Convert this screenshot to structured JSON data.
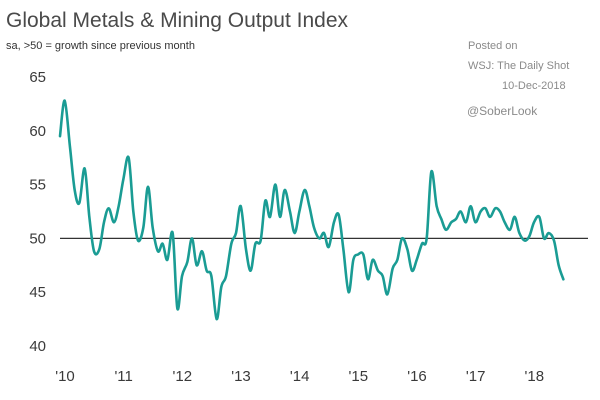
{
  "chart_data": {
    "type": "line",
    "title": "Global Metals & Mining Output Index",
    "subtitle": "sa, >50 = growth since previous month",
    "annotations": {
      "posted": "Posted on",
      "source": "WSJ: The Daily Shot",
      "date": "10-Dec-2018",
      "handle": "@SoberLook"
    },
    "xlabel": "",
    "ylabel": "",
    "ylim": [
      40,
      65
    ],
    "xlim": [
      2010.0,
      2019.0
    ],
    "yticks": [
      40,
      45,
      50,
      55,
      60,
      65
    ],
    "xticks": [
      {
        "value": 2010.0,
        "label": "'10"
      },
      {
        "value": 2011.0,
        "label": "'11"
      },
      {
        "value": 2012.0,
        "label": "'12"
      },
      {
        "value": 2013.0,
        "label": "'13"
      },
      {
        "value": 2014.0,
        "label": "'14"
      },
      {
        "value": 2015.0,
        "label": "'15"
      },
      {
        "value": 2016.0,
        "label": "'16"
      },
      {
        "value": 2017.0,
        "label": "'17"
      },
      {
        "value": 2018.0,
        "label": "'18"
      }
    ],
    "reference_line": 50,
    "grid": false,
    "color": "#1a9c94",
    "series": [
      {
        "values": [
          [
            2010.0,
            59.5
          ],
          [
            2010.08,
            62.8
          ],
          [
            2010.17,
            58.5
          ],
          [
            2010.25,
            54.5
          ],
          [
            2010.33,
            53.3
          ],
          [
            2010.42,
            56.5
          ],
          [
            2010.5,
            52.0
          ],
          [
            2010.58,
            48.8
          ],
          [
            2010.67,
            49.0
          ],
          [
            2010.75,
            51.5
          ],
          [
            2010.83,
            52.8
          ],
          [
            2010.92,
            51.5
          ],
          [
            2011.0,
            53.0
          ],
          [
            2011.08,
            55.5
          ],
          [
            2011.17,
            57.5
          ],
          [
            2011.25,
            52.5
          ],
          [
            2011.33,
            49.8
          ],
          [
            2011.42,
            51.0
          ],
          [
            2011.5,
            54.8
          ],
          [
            2011.58,
            51.0
          ],
          [
            2011.67,
            48.8
          ],
          [
            2011.75,
            49.5
          ],
          [
            2011.83,
            48.0
          ],
          [
            2011.92,
            50.5
          ],
          [
            2012.0,
            43.5
          ],
          [
            2012.08,
            46.5
          ],
          [
            2012.17,
            47.8
          ],
          [
            2012.25,
            50.0
          ],
          [
            2012.33,
            47.5
          ],
          [
            2012.42,
            48.8
          ],
          [
            2012.5,
            47.0
          ],
          [
            2012.58,
            46.5
          ],
          [
            2012.67,
            42.5
          ],
          [
            2012.75,
            45.5
          ],
          [
            2012.83,
            46.5
          ],
          [
            2012.92,
            49.5
          ],
          [
            2013.0,
            50.5
          ],
          [
            2013.08,
            53.0
          ],
          [
            2013.17,
            49.0
          ],
          [
            2013.25,
            47.0
          ],
          [
            2013.33,
            49.5
          ],
          [
            2013.42,
            49.8
          ],
          [
            2013.5,
            53.5
          ],
          [
            2013.58,
            52.0
          ],
          [
            2013.67,
            55.0
          ],
          [
            2013.75,
            52.0
          ],
          [
            2013.83,
            54.5
          ],
          [
            2013.92,
            52.5
          ],
          [
            2014.0,
            50.5
          ],
          [
            2014.08,
            52.5
          ],
          [
            2014.17,
            54.5
          ],
          [
            2014.25,
            53.0
          ],
          [
            2014.33,
            51.0
          ],
          [
            2014.42,
            50.0
          ],
          [
            2014.5,
            50.5
          ],
          [
            2014.58,
            49.2
          ],
          [
            2014.67,
            51.5
          ],
          [
            2014.75,
            52.2
          ],
          [
            2014.83,
            49.0
          ],
          [
            2014.92,
            45.0
          ],
          [
            2015.0,
            48.0
          ],
          [
            2015.08,
            48.5
          ],
          [
            2015.17,
            48.5
          ],
          [
            2015.25,
            46.2
          ],
          [
            2015.33,
            48.0
          ],
          [
            2015.42,
            47.0
          ],
          [
            2015.5,
            46.5
          ],
          [
            2015.58,
            44.8
          ],
          [
            2015.67,
            47.2
          ],
          [
            2015.75,
            48.0
          ],
          [
            2015.83,
            50.0
          ],
          [
            2015.92,
            49.0
          ],
          [
            2016.0,
            47.0
          ],
          [
            2016.08,
            48.0
          ],
          [
            2016.17,
            49.5
          ],
          [
            2016.25,
            50.0
          ],
          [
            2016.33,
            56.2
          ],
          [
            2016.42,
            53.0
          ],
          [
            2016.5,
            51.8
          ],
          [
            2016.58,
            50.8
          ],
          [
            2016.67,
            51.5
          ],
          [
            2016.75,
            51.8
          ],
          [
            2016.83,
            52.5
          ],
          [
            2016.92,
            51.5
          ],
          [
            2017.0,
            53.0
          ],
          [
            2017.08,
            51.5
          ],
          [
            2017.17,
            52.5
          ],
          [
            2017.25,
            52.8
          ],
          [
            2017.33,
            52.0
          ],
          [
            2017.42,
            52.8
          ],
          [
            2017.5,
            52.5
          ],
          [
            2017.58,
            51.5
          ],
          [
            2017.67,
            50.8
          ],
          [
            2017.75,
            52.0
          ],
          [
            2017.83,
            50.5
          ],
          [
            2017.92,
            49.8
          ],
          [
            2018.0,
            50.2
          ],
          [
            2018.08,
            51.5
          ],
          [
            2018.17,
            52.0
          ],
          [
            2018.25,
            50.0
          ],
          [
            2018.33,
            50.5
          ],
          [
            2018.42,
            49.8
          ],
          [
            2018.5,
            47.5
          ],
          [
            2018.58,
            46.2
          ]
        ]
      }
    ]
  }
}
